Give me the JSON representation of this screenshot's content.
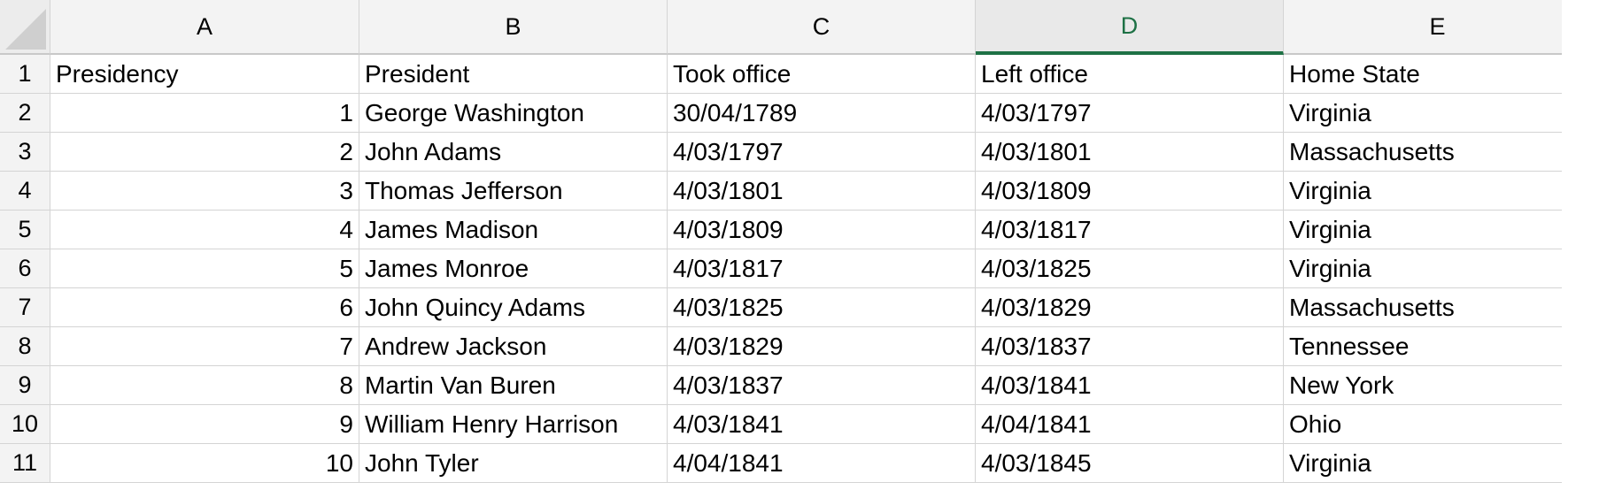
{
  "columns": [
    "A",
    "B",
    "C",
    "D",
    "E"
  ],
  "active_column": "D",
  "rows": [
    {
      "n": "1",
      "cells": [
        "Presidency",
        "President",
        "Took office",
        "Left office",
        "Home State"
      ]
    },
    {
      "n": "2",
      "cells": [
        "1",
        "George Washington",
        "30/04/1789",
        "4/03/1797",
        "Virginia"
      ]
    },
    {
      "n": "3",
      "cells": [
        "2",
        "John Adams",
        "4/03/1797",
        "4/03/1801",
        "Massachusetts"
      ]
    },
    {
      "n": "4",
      "cells": [
        "3",
        "Thomas Jefferson",
        "4/03/1801",
        "4/03/1809",
        "Virginia"
      ]
    },
    {
      "n": "5",
      "cells": [
        "4",
        "James Madison",
        "4/03/1809",
        "4/03/1817",
        "Virginia"
      ]
    },
    {
      "n": "6",
      "cells": [
        "5",
        "James Monroe",
        "4/03/1817",
        "4/03/1825",
        "Virginia"
      ]
    },
    {
      "n": "7",
      "cells": [
        "6",
        "John Quincy Adams",
        "4/03/1825",
        "4/03/1829",
        "Massachusetts"
      ]
    },
    {
      "n": "8",
      "cells": [
        "7",
        "Andrew Jackson",
        "4/03/1829",
        "4/03/1837",
        "Tennessee"
      ]
    },
    {
      "n": "9",
      "cells": [
        "8",
        "Martin Van Buren",
        "4/03/1837",
        "4/03/1841",
        "New York"
      ]
    },
    {
      "n": "10",
      "cells": [
        "9",
        "William Henry Harrison",
        "4/03/1841",
        "4/04/1841",
        "Ohio"
      ]
    },
    {
      "n": "11",
      "cells": [
        "10",
        "John Tyler",
        "4/04/1841",
        "4/03/1845",
        "Virginia"
      ]
    }
  ]
}
